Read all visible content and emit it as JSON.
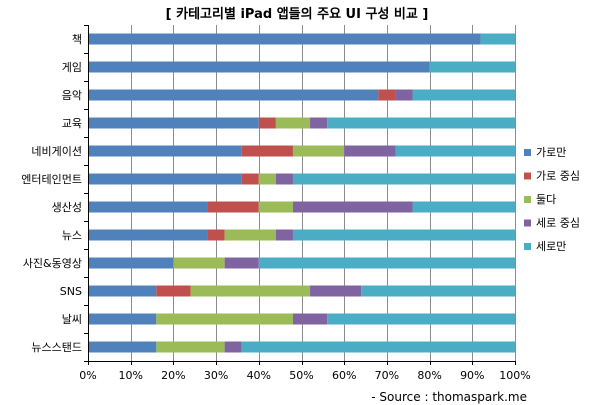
{
  "chart_data": {
    "type": "bar",
    "orientation": "horizontal",
    "stacked": "percent",
    "title": "[ 카테고리별 iPad 앱들의 주요 UI 구성 비교 ]",
    "source": "- Source : thomaspark.me",
    "categories": [
      "책",
      "게임",
      "음악",
      "교육",
      "네비게이션",
      "엔터테인먼트",
      "생산성",
      "뉴스",
      "사진&동영상",
      "SNS",
      "날씨",
      "뉴스스탠드"
    ],
    "x_ticks": [
      "0%",
      "10%",
      "20%",
      "30%",
      "40%",
      "50%",
      "60%",
      "70%",
      "80%",
      "90%",
      "100%"
    ],
    "xlim": [
      0,
      100
    ],
    "grid": true,
    "legend_position": "right",
    "series": [
      {
        "name": "가로만",
        "color": "#4F81BD",
        "values": [
          92,
          80,
          68,
          40,
          36,
          36,
          28,
          28,
          20,
          16,
          16,
          16
        ]
      },
      {
        "name": "가로 중심",
        "color": "#C0504D",
        "values": [
          0,
          0,
          4,
          4,
          12,
          4,
          12,
          4,
          0,
          8,
          0,
          0
        ]
      },
      {
        "name": "둘다",
        "color": "#9BBB59",
        "values": [
          0,
          0,
          0,
          8,
          12,
          4,
          8,
          12,
          12,
          28,
          32,
          16
        ]
      },
      {
        "name": "세로 중심",
        "color": "#8064A2",
        "values": [
          0,
          0,
          4,
          4,
          12,
          4,
          28,
          4,
          8,
          12,
          8,
          4
        ]
      },
      {
        "name": "세로만",
        "color": "#4BACC6",
        "values": [
          8,
          20,
          24,
          44,
          28,
          52,
          24,
          52,
          60,
          36,
          44,
          64
        ]
      }
    ]
  }
}
